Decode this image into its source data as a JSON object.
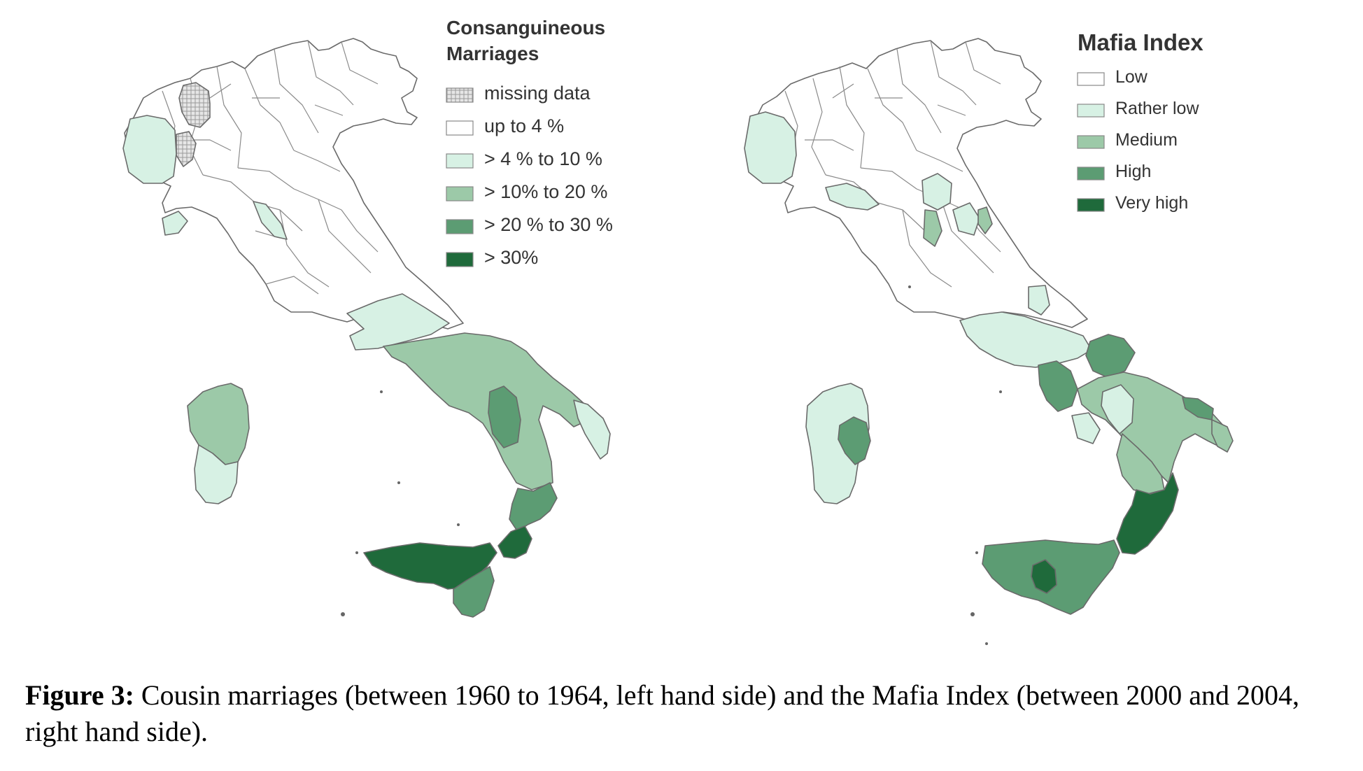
{
  "left_map": {
    "legend": {
      "title_lines": [
        "Consanguineous",
        "Marriages"
      ],
      "items": [
        {
          "label": "missing data",
          "color": "#e6e6e6",
          "pattern": "hatched"
        },
        {
          "label": "up to 4 %",
          "color": "#ffffff"
        },
        {
          "label": ">   4 % to 10 %",
          "color": "#d7f1e4"
        },
        {
          "label": "> 10% to 20 %",
          "color": "#9cc9a8"
        },
        {
          "label": "> 20 % to 30 %",
          "color": "#5c9c73"
        },
        {
          "label": "> 30%",
          "color": "#1f6a3b"
        }
      ]
    }
  },
  "right_map": {
    "legend": {
      "title_lines": [
        "Mafia Index"
      ],
      "items": [
        {
          "label": "Low",
          "color": "#ffffff"
        },
        {
          "label": "Rather low",
          "color": "#d7f1e4"
        },
        {
          "label": "Medium",
          "color": "#9cc9a8"
        },
        {
          "label": "High",
          "color": "#5c9c73"
        },
        {
          "label": "Very high",
          "color": "#1f6a3b"
        }
      ]
    }
  },
  "caption": {
    "label": "Figure 3:",
    "text": " Cousin marriages (between 1960 to 1964, left hand side) and the Mafia Index (between 2000 and 2004, right hand side)."
  }
}
